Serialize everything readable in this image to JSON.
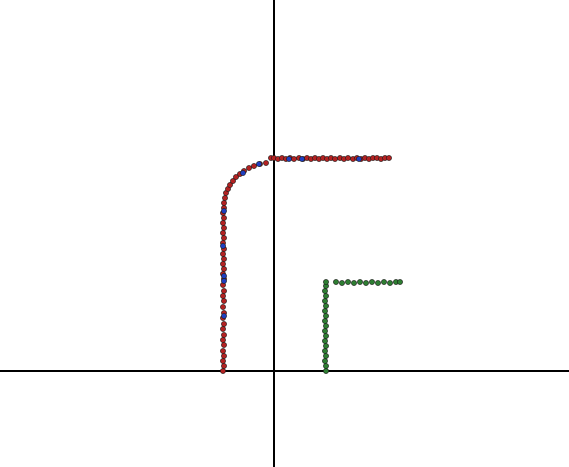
{
  "chart_data": {
    "type": "scatter",
    "title": "",
    "xlabel": "",
    "ylabel": "",
    "grid": false,
    "legend": "none",
    "xlim": [
      -2.74,
      2.95
    ],
    "ylim": [
      -0.96,
      3.71
    ],
    "axes_through_origin": true,
    "series": [
      {
        "color": "#b22222",
        "points": [
          [
            -0.51,
            0.0
          ],
          [
            -0.5,
            0.05
          ],
          [
            -0.51,
            0.1
          ],
          [
            -0.5,
            0.15
          ],
          [
            -0.51,
            0.2
          ],
          [
            -0.5,
            0.26
          ],
          [
            -0.51,
            0.31
          ],
          [
            -0.5,
            0.36
          ],
          [
            -0.51,
            0.42
          ],
          [
            -0.5,
            0.47
          ],
          [
            -0.51,
            0.53
          ],
          [
            -0.5,
            0.58
          ],
          [
            -0.51,
            0.64
          ],
          [
            -0.5,
            0.7
          ],
          [
            -0.51,
            0.75
          ],
          [
            -0.5,
            0.8
          ],
          [
            -0.51,
            0.86
          ],
          [
            -0.5,
            0.92
          ],
          [
            -0.51,
            0.97
          ],
          [
            -0.5,
            1.02
          ],
          [
            -0.51,
            1.07
          ],
          [
            -0.5,
            1.12
          ],
          [
            -0.51,
            1.17
          ],
          [
            -0.5,
            1.22
          ],
          [
            -0.51,
            1.28
          ],
          [
            -0.5,
            1.33
          ],
          [
            -0.51,
            1.38
          ],
          [
            -0.5,
            1.43
          ],
          [
            -0.51,
            1.48
          ],
          [
            -0.5,
            1.53
          ],
          [
            -0.51,
            1.58
          ],
          [
            -0.5,
            1.63
          ],
          [
            -0.5,
            1.68
          ],
          [
            -0.49,
            1.73
          ],
          [
            -0.48,
            1.78
          ],
          [
            -0.46,
            1.82
          ],
          [
            -0.44,
            1.86
          ],
          [
            -0.41,
            1.9
          ],
          [
            -0.38,
            1.94
          ],
          [
            -0.34,
            1.97
          ],
          [
            -0.3,
            2.0
          ],
          [
            -0.25,
            2.03
          ],
          [
            -0.2,
            2.05
          ],
          [
            -0.14,
            2.07
          ],
          [
            -0.08,
            2.08
          ],
          [
            -0.03,
            2.13
          ],
          [
            0.0,
            2.13
          ],
          [
            0.04,
            2.12
          ],
          [
            0.08,
            2.13
          ],
          [
            0.12,
            2.12
          ],
          [
            0.16,
            2.13
          ],
          [
            0.2,
            2.12
          ],
          [
            0.25,
            2.13
          ],
          [
            0.29,
            2.12
          ],
          [
            0.33,
            2.13
          ],
          [
            0.37,
            2.12
          ],
          [
            0.41,
            2.13
          ],
          [
            0.45,
            2.12
          ],
          [
            0.49,
            2.13
          ],
          [
            0.53,
            2.12
          ],
          [
            0.57,
            2.13
          ],
          [
            0.61,
            2.12
          ],
          [
            0.66,
            2.13
          ],
          [
            0.7,
            2.12
          ],
          [
            0.74,
            2.13
          ],
          [
            0.79,
            2.12
          ],
          [
            0.83,
            2.13
          ],
          [
            0.87,
            2.12
          ],
          [
            0.91,
            2.13
          ],
          [
            0.95,
            2.12
          ],
          [
            0.99,
            2.13
          ],
          [
            1.03,
            2.13
          ],
          [
            1.07,
            2.12
          ],
          [
            1.11,
            2.13
          ],
          [
            1.15,
            2.13
          ]
        ]
      },
      {
        "color": "#1f3fbf",
        "points": [
          [
            -0.5,
            0.55
          ],
          [
            -0.5,
            0.95
          ],
          [
            -0.51,
            1.25
          ],
          [
            -0.5,
            0.9
          ],
          [
            -0.5,
            1.6
          ],
          [
            -0.31,
            1.98
          ],
          [
            -0.15,
            2.07
          ],
          [
            0.15,
            2.12
          ],
          [
            0.28,
            2.12
          ],
          [
            0.85,
            2.12
          ]
        ]
      },
      {
        "color": "#2e7d32",
        "points": [
          [
            0.52,
            0.0
          ],
          [
            0.52,
            0.05
          ],
          [
            0.51,
            0.1
          ],
          [
            0.52,
            0.15
          ],
          [
            0.51,
            0.2
          ],
          [
            0.52,
            0.25
          ],
          [
            0.51,
            0.3
          ],
          [
            0.52,
            0.35
          ],
          [
            0.51,
            0.4
          ],
          [
            0.52,
            0.45
          ],
          [
            0.51,
            0.5
          ],
          [
            0.52,
            0.55
          ],
          [
            0.51,
            0.6
          ],
          [
            0.52,
            0.65
          ],
          [
            0.51,
            0.7
          ],
          [
            0.52,
            0.75
          ],
          [
            0.51,
            0.8
          ],
          [
            0.52,
            0.85
          ],
          [
            0.52,
            0.89
          ],
          [
            0.62,
            0.89
          ],
          [
            0.68,
            0.88
          ],
          [
            0.74,
            0.89
          ],
          [
            0.8,
            0.88
          ],
          [
            0.86,
            0.89
          ],
          [
            0.92,
            0.88
          ],
          [
            0.98,
            0.89
          ],
          [
            1.04,
            0.88
          ],
          [
            1.1,
            0.89
          ],
          [
            1.16,
            0.88
          ],
          [
            1.22,
            0.89
          ],
          [
            1.26,
            0.89
          ]
        ]
      }
    ]
  }
}
